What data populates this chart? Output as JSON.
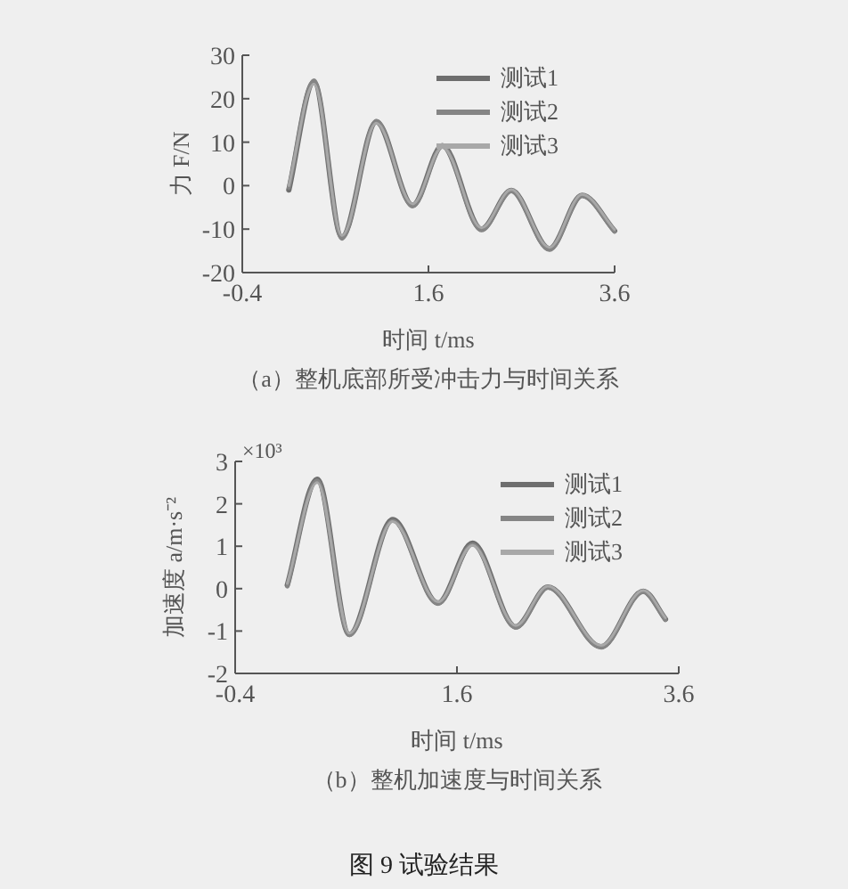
{
  "chart_data": [
    {
      "type": "line",
      "title": "（a）整机底部所受冲击力与时间关系",
      "xlabel": "时间    t/ms",
      "ylabel": "力  F/N",
      "x": [
        0.1,
        0.37,
        0.67,
        1.04,
        1.43,
        1.75,
        2.17,
        2.49,
        2.9,
        3.25,
        3.6
      ],
      "series": [
        {
          "name": "测试1",
          "color": "#6e6e6e",
          "values": [
            -1,
            23.8,
            -11.8,
            14.7,
            -4.5,
            9.2,
            -10,
            -1.1,
            -14.5,
            -2.2,
            -10.4
          ]
        },
        {
          "name": "测试2",
          "color": "#858585",
          "values": [
            -0.5,
            24.2,
            -12.2,
            14.9,
            -4.8,
            9,
            -10.3,
            -1.3,
            -14.8,
            -2.4,
            -10.6
          ]
        },
        {
          "name": "测试3",
          "color": "#a8a8a8",
          "values": [
            0,
            23.4,
            -11.5,
            14.4,
            -4.2,
            8.8,
            -9.7,
            -0.9,
            -14.2,
            -2,
            -10.1
          ]
        }
      ],
      "xlim": [
        -0.4,
        3.6
      ],
      "ylim": [
        -20,
        30
      ],
      "xticks": [
        -0.4,
        1.6,
        3.6
      ],
      "yticks": [
        -20,
        -10,
        0,
        10,
        20,
        30
      ],
      "legend": "top right"
    },
    {
      "type": "line",
      "title": "（b）整机加速度与时间关系",
      "xlabel": "时间    t/ms",
      "ylabel": "加速度    a/m·s⁻²",
      "x": [
        0.07,
        0.34,
        0.63,
        1.02,
        1.43,
        1.74,
        2.13,
        2.42,
        2.9,
        3.28,
        3.48
      ],
      "series": [
        {
          "name": "测试1",
          "color": "#6e6e6e",
          "values": [
            0.08,
            2.58,
            -1.08,
            1.63,
            -0.34,
            1.07,
            -0.9,
            0.04,
            -1.37,
            -0.06,
            -0.72
          ]
        },
        {
          "name": "测试2",
          "color": "#858585",
          "values": [
            0.05,
            2.55,
            -1.1,
            1.6,
            -0.36,
            1.04,
            -0.92,
            0.02,
            -1.39,
            -0.08,
            -0.74
          ]
        },
        {
          "name": "测试3",
          "color": "#a8a8a8",
          "values": [
            0.12,
            2.5,
            -1.05,
            1.58,
            -0.31,
            1.02,
            -0.87,
            0.06,
            -1.34,
            -0.04,
            -0.69
          ]
        }
      ],
      "xlim": [
        -0.4,
        3.6
      ],
      "ylim": [
        -2,
        3
      ],
      "xticks": [
        -0.4,
        1.6,
        3.6
      ],
      "yticks": [
        -2,
        -1,
        0,
        1,
        2,
        3
      ],
      "legend": "top right",
      "annotations": [
        "×10³",
        "图 9    试验结果"
      ]
    }
  ]
}
